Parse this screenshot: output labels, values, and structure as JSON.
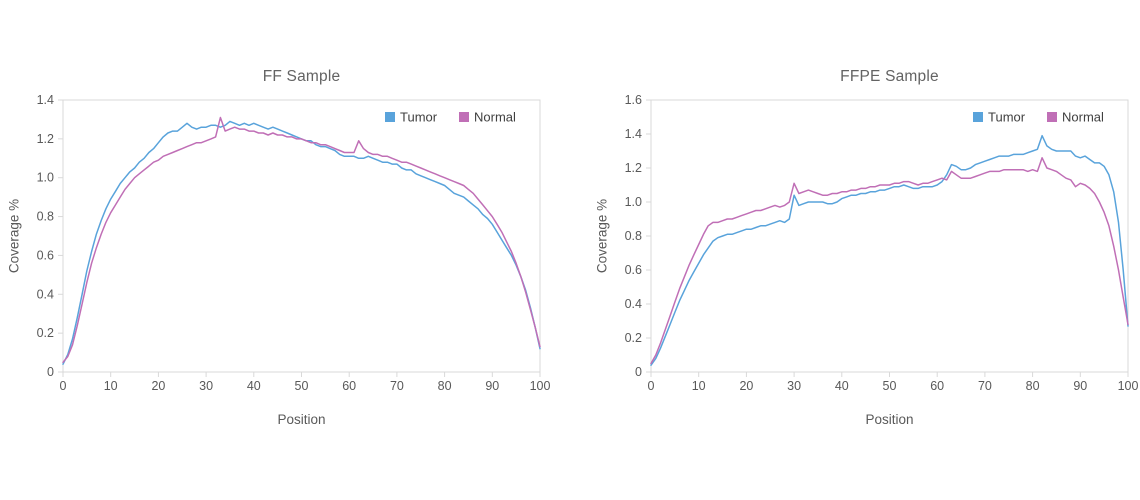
{
  "style": {
    "background": "#ffffff",
    "axis_color": "#d9d9d9",
    "tick_text_color": "#595959",
    "title_color": "#636363",
    "legend_text_color": "#404040",
    "tumor_color": "#59a3db",
    "normal_color": "#c06fb6"
  },
  "chart_data": [
    {
      "type": "line",
      "title": "FF Sample",
      "xlabel": "Position",
      "ylabel": "Coverage %",
      "xlim": [
        0,
        100
      ],
      "ylim": [
        0,
        1.4
      ],
      "grid": false,
      "legend_position": "top-right-inside",
      "xtick_labels": [
        "0",
        "10",
        "20",
        "30",
        "40",
        "50",
        "60",
        "70",
        "80",
        "90",
        "100"
      ],
      "ytick_labels": [
        "0",
        "0.2",
        "0.4",
        "0.6",
        "0.8",
        "1.0",
        "1.2",
        "1.4"
      ],
      "positions": [
        0,
        1,
        2,
        3,
        4,
        5,
        6,
        7,
        8,
        9,
        10,
        11,
        12,
        13,
        14,
        15,
        16,
        17,
        18,
        19,
        20,
        21,
        22,
        23,
        24,
        25,
        26,
        27,
        28,
        29,
        30,
        31,
        32,
        33,
        34,
        35,
        36,
        37,
        38,
        39,
        40,
        41,
        42,
        43,
        44,
        45,
        46,
        47,
        48,
        49,
        50,
        51,
        52,
        53,
        54,
        55,
        56,
        57,
        58,
        59,
        60,
        61,
        62,
        63,
        64,
        65,
        66,
        67,
        68,
        69,
        70,
        71,
        72,
        73,
        74,
        75,
        76,
        77,
        78,
        79,
        80,
        81,
        82,
        83,
        84,
        85,
        86,
        87,
        88,
        89,
        90,
        91,
        92,
        93,
        94,
        95,
        96,
        97,
        98,
        99,
        100
      ],
      "series": [
        {
          "name": "Tumor",
          "color": "#59a3db",
          "values": [
            0.04,
            0.09,
            0.17,
            0.28,
            0.4,
            0.52,
            0.62,
            0.71,
            0.78,
            0.84,
            0.89,
            0.93,
            0.97,
            1.0,
            1.03,
            1.05,
            1.08,
            1.1,
            1.13,
            1.15,
            1.18,
            1.21,
            1.23,
            1.24,
            1.24,
            1.26,
            1.28,
            1.26,
            1.25,
            1.26,
            1.26,
            1.27,
            1.27,
            1.26,
            1.27,
            1.29,
            1.28,
            1.27,
            1.28,
            1.27,
            1.28,
            1.27,
            1.26,
            1.25,
            1.26,
            1.25,
            1.24,
            1.23,
            1.22,
            1.21,
            1.2,
            1.19,
            1.19,
            1.17,
            1.16,
            1.16,
            1.15,
            1.14,
            1.12,
            1.11,
            1.11,
            1.11,
            1.1,
            1.1,
            1.11,
            1.1,
            1.09,
            1.08,
            1.08,
            1.07,
            1.07,
            1.05,
            1.04,
            1.04,
            1.02,
            1.01,
            1.0,
            0.99,
            0.98,
            0.97,
            0.96,
            0.94,
            0.92,
            0.91,
            0.9,
            0.88,
            0.86,
            0.84,
            0.81,
            0.79,
            0.76,
            0.72,
            0.68,
            0.64,
            0.6,
            0.55,
            0.49,
            0.42,
            0.33,
            0.23,
            0.12
          ]
        },
        {
          "name": "Normal",
          "color": "#c06fb6",
          "values": [
            0.05,
            0.08,
            0.14,
            0.24,
            0.35,
            0.46,
            0.56,
            0.64,
            0.71,
            0.77,
            0.82,
            0.86,
            0.9,
            0.94,
            0.97,
            1.0,
            1.02,
            1.04,
            1.06,
            1.08,
            1.09,
            1.11,
            1.12,
            1.13,
            1.14,
            1.15,
            1.16,
            1.17,
            1.18,
            1.18,
            1.19,
            1.2,
            1.21,
            1.31,
            1.24,
            1.25,
            1.26,
            1.25,
            1.25,
            1.24,
            1.24,
            1.23,
            1.23,
            1.22,
            1.23,
            1.22,
            1.22,
            1.21,
            1.21,
            1.2,
            1.2,
            1.19,
            1.18,
            1.18,
            1.17,
            1.17,
            1.16,
            1.15,
            1.14,
            1.13,
            1.13,
            1.13,
            1.19,
            1.15,
            1.13,
            1.12,
            1.12,
            1.11,
            1.11,
            1.1,
            1.09,
            1.08,
            1.08,
            1.07,
            1.06,
            1.05,
            1.04,
            1.03,
            1.02,
            1.01,
            1.0,
            0.99,
            0.98,
            0.97,
            0.96,
            0.94,
            0.92,
            0.89,
            0.86,
            0.83,
            0.8,
            0.76,
            0.72,
            0.67,
            0.62,
            0.56,
            0.49,
            0.41,
            0.32,
            0.23,
            0.13
          ]
        }
      ]
    },
    {
      "type": "line",
      "title": "FFPE Sample",
      "xlabel": "Position",
      "ylabel": "Coverage %",
      "xlim": [
        0,
        100
      ],
      "ylim": [
        0,
        1.6
      ],
      "grid": false,
      "legend_position": "top-right-inside",
      "xtick_labels": [
        "0",
        "10",
        "20",
        "30",
        "40",
        "50",
        "60",
        "70",
        "80",
        "90",
        "100"
      ],
      "ytick_labels": [
        "0",
        "0.2",
        "0.4",
        "0.6",
        "0.8",
        "1.0",
        "1.2",
        "1.4",
        "1.6"
      ],
      "positions": [
        0,
        1,
        2,
        3,
        4,
        5,
        6,
        7,
        8,
        9,
        10,
        11,
        12,
        13,
        14,
        15,
        16,
        17,
        18,
        19,
        20,
        21,
        22,
        23,
        24,
        25,
        26,
        27,
        28,
        29,
        30,
        31,
        32,
        33,
        34,
        35,
        36,
        37,
        38,
        39,
        40,
        41,
        42,
        43,
        44,
        45,
        46,
        47,
        48,
        49,
        50,
        51,
        52,
        53,
        54,
        55,
        56,
        57,
        58,
        59,
        60,
        61,
        62,
        63,
        64,
        65,
        66,
        67,
        68,
        69,
        70,
        71,
        72,
        73,
        74,
        75,
        76,
        77,
        78,
        79,
        80,
        81,
        82,
        83,
        84,
        85,
        86,
        87,
        88,
        89,
        90,
        91,
        92,
        93,
        94,
        95,
        96,
        97,
        98,
        99,
        100
      ],
      "series": [
        {
          "name": "Tumor",
          "color": "#59a3db",
          "values": [
            0.04,
            0.08,
            0.14,
            0.21,
            0.28,
            0.35,
            0.42,
            0.48,
            0.54,
            0.59,
            0.64,
            0.69,
            0.73,
            0.77,
            0.79,
            0.8,
            0.81,
            0.81,
            0.82,
            0.83,
            0.84,
            0.84,
            0.85,
            0.86,
            0.86,
            0.87,
            0.88,
            0.89,
            0.88,
            0.9,
            1.04,
            0.98,
            0.99,
            1.0,
            1.0,
            1.0,
            1.0,
            0.99,
            0.99,
            1.0,
            1.02,
            1.03,
            1.04,
            1.04,
            1.05,
            1.05,
            1.06,
            1.06,
            1.07,
            1.07,
            1.08,
            1.09,
            1.09,
            1.1,
            1.09,
            1.08,
            1.08,
            1.09,
            1.09,
            1.09,
            1.1,
            1.12,
            1.16,
            1.22,
            1.21,
            1.19,
            1.19,
            1.2,
            1.22,
            1.23,
            1.24,
            1.25,
            1.26,
            1.27,
            1.27,
            1.27,
            1.28,
            1.28,
            1.28,
            1.29,
            1.3,
            1.31,
            1.39,
            1.33,
            1.31,
            1.3,
            1.3,
            1.3,
            1.3,
            1.27,
            1.26,
            1.27,
            1.25,
            1.23,
            1.23,
            1.21,
            1.16,
            1.06,
            0.88,
            0.6,
            0.27
          ]
        },
        {
          "name": "Normal",
          "color": "#c06fb6",
          "values": [
            0.05,
            0.1,
            0.17,
            0.25,
            0.33,
            0.41,
            0.49,
            0.56,
            0.63,
            0.69,
            0.75,
            0.81,
            0.86,
            0.88,
            0.88,
            0.89,
            0.9,
            0.9,
            0.91,
            0.92,
            0.93,
            0.94,
            0.95,
            0.95,
            0.96,
            0.97,
            0.98,
            0.97,
            0.98,
            1.0,
            1.11,
            1.05,
            1.06,
            1.07,
            1.06,
            1.05,
            1.04,
            1.04,
            1.05,
            1.05,
            1.06,
            1.06,
            1.07,
            1.07,
            1.08,
            1.08,
            1.09,
            1.09,
            1.1,
            1.1,
            1.1,
            1.11,
            1.11,
            1.12,
            1.12,
            1.11,
            1.1,
            1.11,
            1.11,
            1.12,
            1.13,
            1.14,
            1.13,
            1.18,
            1.16,
            1.14,
            1.14,
            1.14,
            1.15,
            1.16,
            1.17,
            1.18,
            1.18,
            1.18,
            1.19,
            1.19,
            1.19,
            1.19,
            1.19,
            1.18,
            1.19,
            1.18,
            1.26,
            1.2,
            1.19,
            1.18,
            1.16,
            1.14,
            1.13,
            1.09,
            1.11,
            1.1,
            1.08,
            1.05,
            1.0,
            0.94,
            0.86,
            0.74,
            0.6,
            0.44,
            0.28
          ]
        }
      ]
    }
  ]
}
